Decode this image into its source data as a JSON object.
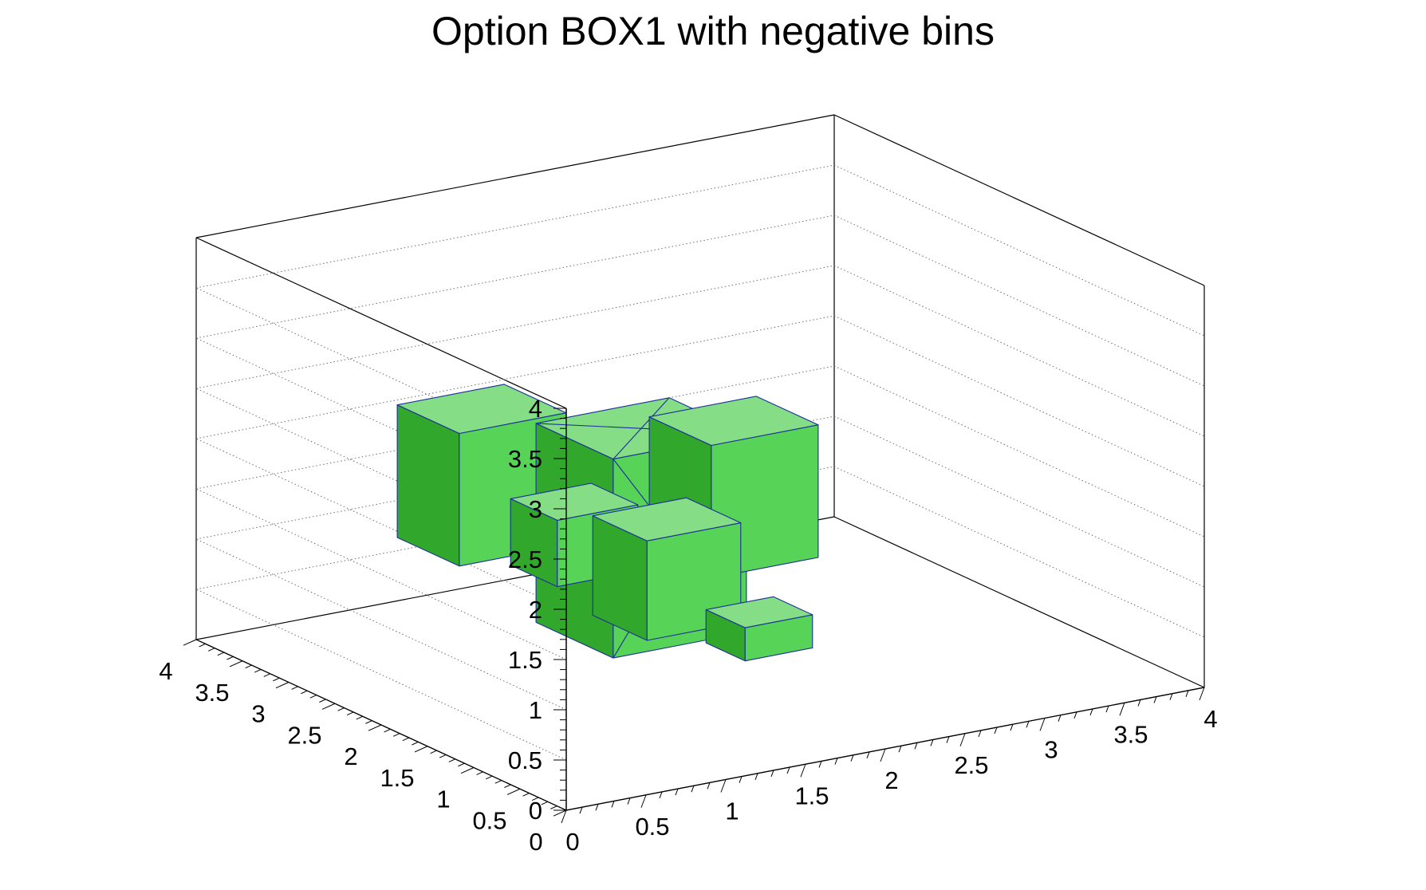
{
  "chart_data": {
    "type": "lego3d",
    "title": "Option BOX1 with negative bins",
    "x_ticks": [
      "0",
      "0.5",
      "1",
      "1.5",
      "2",
      "2.5",
      "3",
      "3.5",
      "4"
    ],
    "y_ticks": [
      "0",
      "0.5",
      "1",
      "1.5",
      "2",
      "2.5",
      "3",
      "3.5",
      "4"
    ],
    "z_ticks": [
      "0",
      "0.5",
      "1",
      "1.5",
      "2",
      "2.5",
      "3",
      "3.5",
      "4"
    ],
    "xlim": [
      0,
      4
    ],
    "ylim": [
      0,
      4
    ],
    "zlim": [
      0,
      4
    ],
    "grid": true,
    "colors": {
      "top": "#85dd85",
      "front": "#57d357",
      "side": "#31a72b",
      "edge": "#1a2f9c"
    },
    "bins": [
      {
        "x": [
          1,
          2
        ],
        "y": [
          0,
          1
        ],
        "value": 0.5
      },
      {
        "x": [
          1,
          2
        ],
        "y": [
          2,
          3
        ],
        "value": 1.0
      },
      {
        "x": [
          2,
          3
        ],
        "y": [
          2,
          3
        ],
        "value": 2.0
      },
      {
        "x": [
          1,
          2
        ],
        "y": [
          3,
          4
        ],
        "value": 2.0
      },
      {
        "x": [
          2,
          3
        ],
        "y": [
          3,
          4
        ],
        "value": -3.0
      },
      {
        "x": [
          1,
          2
        ],
        "y": [
          1,
          2
        ],
        "value": 1.5
      }
    ]
  }
}
